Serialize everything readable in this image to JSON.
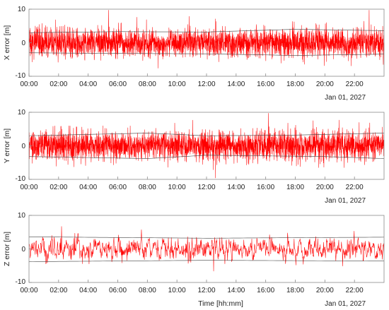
{
  "chart_data": [
    {
      "type": "line",
      "ylabel": "X error [m]",
      "xlabel": "",
      "date_label": "Jan 01, 2027",
      "xlim": [
        "00:00",
        "24:00"
      ],
      "ylim": [
        -10,
        10
      ],
      "yticks": [
        "10",
        "0",
        "-10"
      ],
      "xticks": [
        "00:00",
        "02:00",
        "04:00",
        "06:00",
        "08:00",
        "10:00",
        "12:00",
        "14:00",
        "16:00",
        "18:00",
        "20:00",
        "22:00"
      ],
      "series": [
        {
          "role": "error",
          "color": "#ff0000",
          "sample_interval_min": 0.5,
          "mean": 0.0,
          "noise_sigma": 2.0,
          "jitter_sigma": 1.3,
          "seed": 11
        }
      ],
      "bounds": {
        "color": "#444444",
        "upper": [
          [
            0,
            3.0
          ],
          [
            6,
            3.3
          ],
          [
            12,
            3.2
          ],
          [
            18,
            4.0
          ],
          [
            24,
            3.6
          ]
        ],
        "lower": [
          [
            0,
            -3.0
          ],
          [
            6,
            -3.2
          ],
          [
            12,
            -3.3
          ],
          [
            18,
            -3.8
          ],
          [
            24,
            -3.4
          ]
        ]
      },
      "grid": false
    },
    {
      "type": "line",
      "ylabel": "Y error [m]",
      "xlabel": "",
      "date_label": "Jan 01, 2027",
      "xlim": [
        "00:00",
        "24:00"
      ],
      "ylim": [
        -10,
        10
      ],
      "yticks": [
        "10",
        "0",
        "-10"
      ],
      "xticks": [
        "00:00",
        "02:00",
        "04:00",
        "06:00",
        "08:00",
        "10:00",
        "12:00",
        "14:00",
        "16:00",
        "18:00",
        "20:00",
        "22:00"
      ],
      "series": [
        {
          "role": "error",
          "color": "#ff0000",
          "sample_interval_min": 0.5,
          "mean": 0.0,
          "noise_sigma": 2.0,
          "jitter_sigma": 1.3,
          "seed": 23
        }
      ],
      "bounds": {
        "color": "#444444",
        "upper": [
          [
            0,
            3.0
          ],
          [
            8,
            3.8
          ],
          [
            12,
            3.0
          ],
          [
            18,
            3.2
          ],
          [
            24,
            3.8
          ]
        ],
        "lower": [
          [
            0,
            -3.2
          ],
          [
            8,
            -3.8
          ],
          [
            12,
            -2.8
          ],
          [
            20,
            -3.2
          ],
          [
            24,
            -3.8
          ]
        ]
      },
      "grid": false
    },
    {
      "type": "line",
      "ylabel": "Z error [m]",
      "xlabel": "Time [hh:mm]",
      "date_label": "Jan 01, 2027",
      "xlim": [
        "00:00",
        "24:00"
      ],
      "ylim": [
        -10,
        10
      ],
      "yticks": [
        "10",
        "0",
        "-10"
      ],
      "xticks": [
        "00:00",
        "02:00",
        "04:00",
        "06:00",
        "08:00",
        "10:00",
        "12:00",
        "14:00",
        "16:00",
        "18:00",
        "20:00",
        "22:00"
      ],
      "series": [
        {
          "role": "error",
          "color": "#ff0000",
          "sample_interval_min": 1.2,
          "mean": 0.0,
          "noise_sigma": 1.9,
          "jitter_sigma": 0.9,
          "smoothing": 0.55,
          "seed": 37
        }
      ],
      "bounds": {
        "color": "#444444",
        "upper": [
          [
            0,
            3.6
          ],
          [
            12,
            3.2
          ],
          [
            24,
            3.5
          ]
        ],
        "lower": [
          [
            0,
            -3.8
          ],
          [
            12,
            -3.4
          ],
          [
            24,
            -3.6
          ]
        ]
      },
      "grid": false
    }
  ]
}
